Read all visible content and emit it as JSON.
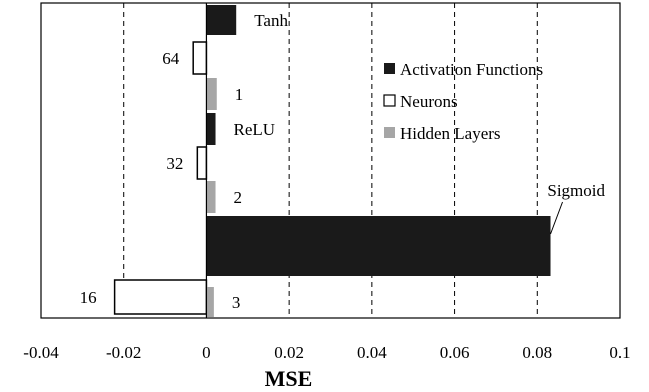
{
  "chart_data": {
    "type": "bar",
    "orientation": "horizontal",
    "xlabel": "MSE",
    "xlim": [
      -0.04,
      0.1
    ],
    "x_ticks": [
      -0.04,
      -0.02,
      0,
      0.02,
      0.04,
      0.06,
      0.08,
      0.1
    ],
    "x_tick_labels": [
      "-0.04",
      "-0.02",
      "0",
      "0.02",
      "0.04",
      "0.06",
      "0.08",
      "0.1"
    ],
    "grid": "vertical dashed",
    "legend_position": "right-middle",
    "series": [
      {
        "name": "Activation Functions",
        "color": "#1a1a1a",
        "style": "filled"
      },
      {
        "name": "Neurons",
        "color": "#ffffff",
        "style": "outline"
      },
      {
        "name": "Hidden Layers",
        "color": "#a6a6a6",
        "style": "filled"
      }
    ],
    "bars": [
      {
        "series": "Activation Functions",
        "label": "Tanh",
        "value": 0.0072
      },
      {
        "series": "Neurons",
        "label": "64",
        "value": -0.0032
      },
      {
        "series": "Hidden Layers",
        "label": "1",
        "value": 0.0025
      },
      {
        "series": "Activation Functions",
        "label": "ReLU",
        "value": 0.0022
      },
      {
        "series": "Neurons",
        "label": "32",
        "value": -0.0022
      },
      {
        "series": "Hidden Layers",
        "label": "2",
        "value": 0.0022
      },
      {
        "series": "Activation Functions",
        "label": "Sigmoid",
        "value": 0.0832
      },
      {
        "series": "Neurons",
        "label": "16",
        "value": -0.0222
      },
      {
        "series": "Hidden Layers",
        "label": "3",
        "value": 0.0018
      }
    ]
  }
}
